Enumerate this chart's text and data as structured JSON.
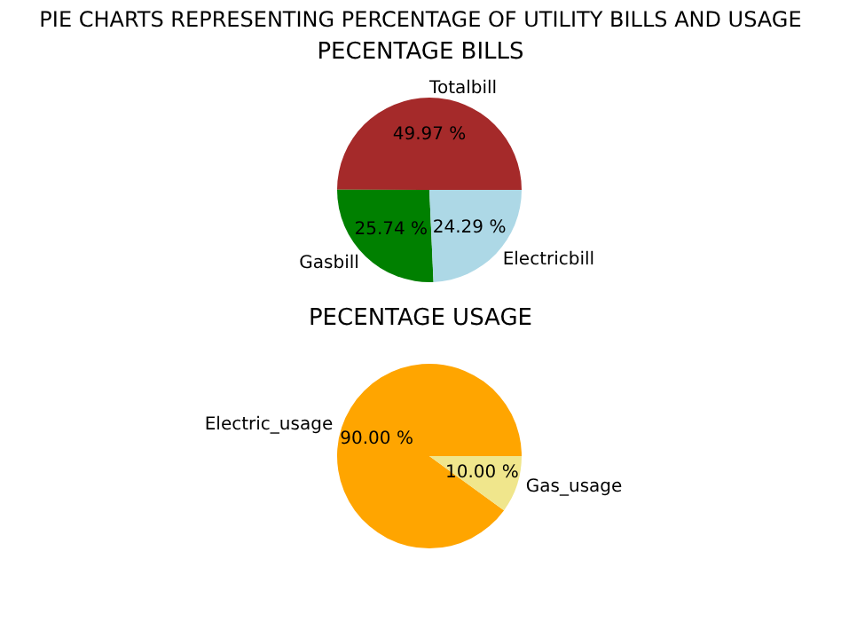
{
  "chart_data": [
    {
      "type": "pie",
      "title": "PIE CHARTS REPRESENTING PERCENTAGE OF UTILITY BILLS AND USAGE",
      "subtitle": "PECENTAGE BILLS",
      "categories": [
        "Totalbill",
        "Gasbill",
        "Electricbill"
      ],
      "values": [
        49.97,
        25.74,
        24.29
      ],
      "colors": [
        "#a52a2a",
        "#008000",
        "#add8e6"
      ],
      "value_labels": [
        "49.97 %",
        "25.74 %",
        "24.29 %"
      ],
      "legend": false
    },
    {
      "type": "pie",
      "title": "PECENTAGE USAGE",
      "categories": [
        "Electric_usage",
        "Gas_usage"
      ],
      "values": [
        90.0,
        10.0
      ],
      "colors": [
        "#ffa500",
        "#f0e68c"
      ],
      "value_labels": [
        "90.00 %",
        "10.00 %"
      ],
      "legend": false
    }
  ]
}
